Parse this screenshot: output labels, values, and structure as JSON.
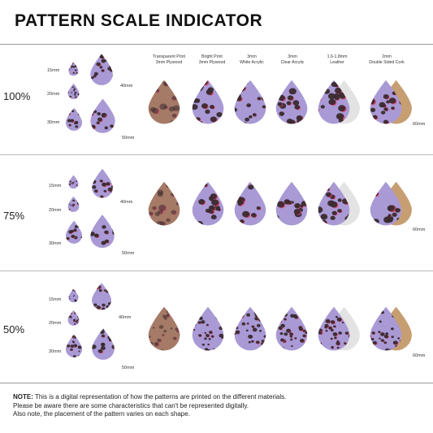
{
  "title": "PATTERN SCALE INDICATOR",
  "rows": [
    {
      "scale": "100%"
    },
    {
      "scale": "75%"
    },
    {
      "scale": "50%"
    }
  ],
  "size_labels": {
    "s15": "15mm",
    "s20": "20mm",
    "s30": "30mm",
    "s40": "40mm",
    "s50": "50mm",
    "s60": "60mm"
  },
  "materials": [
    {
      "line1": "Transparent Print",
      "line2": "3mm Plywood"
    },
    {
      "line1": "Bright Print",
      "line2": "3mm Plywood"
    },
    {
      "line1": "3mm",
      "line2": "White Acrylic"
    },
    {
      "line1": "3mm",
      "line2": "Clear Acrylic"
    },
    {
      "line1": "1.6-1.8mm",
      "line2": "Leather"
    },
    {
      "line1": "2mm",
      "line2": "Double Sided Cork"
    }
  ],
  "note": {
    "label": "NOTE:",
    "line1": "This is a digital representation of how the patterns are printed on the different materials.",
    "line2": "Please be aware there are some characteristics that can't be represented digitally.",
    "line3": "Also note, the placement of the pattern varies on each shape."
  },
  "colors": {
    "lilac": "#a99ad6",
    "plywood": "#a57a66",
    "spot": "#3a2a2e",
    "pink": "#d9456e",
    "leather": "#e3e3e3",
    "cork": "#c79e72"
  }
}
